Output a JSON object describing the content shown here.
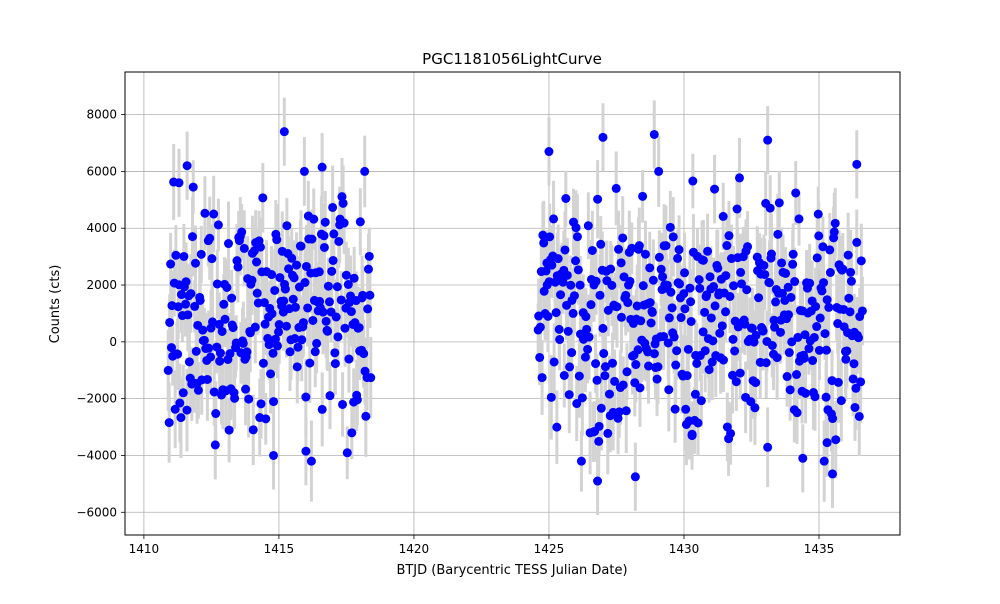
{
  "chart_data": {
    "type": "scatter",
    "title": "PGC1181056LightCurve",
    "xlabel": "BTJD (Barycentric TESS Julian Date)",
    "ylabel": "Counts (cts)",
    "xlim": [
      1409.3,
      1438.0
    ],
    "ylim": [
      -6800,
      9500
    ],
    "xticks": [
      1410,
      1415,
      1420,
      1425,
      1430,
      1435
    ],
    "yticks": [
      -6000,
      -4000,
      -2000,
      0,
      2000,
      4000,
      6000,
      8000
    ],
    "grid": true,
    "marker_color": "#0000ff",
    "errorbar_color": "#d3d3d3",
    "series": [
      {
        "segments": [
          {
            "x_start": 1410.9,
            "x_end": 1418.4,
            "count": 260,
            "y_center": 1000,
            "y_spread": 2300,
            "err": 1200
          },
          {
            "x_start": 1424.6,
            "x_end": 1436.6,
            "count": 420,
            "y_center": 1000,
            "y_spread": 2300,
            "err": 1200
          }
        ],
        "x": [
          1415.2,
          1427.0,
          1428.9,
          1433.1,
          1411.6,
          1416.6,
          1425.0,
          1436.4,
          1426.8,
          1428.2,
          1435.5,
          1414.8,
          1416.0,
          1430.3,
          1434.4,
          1435.3,
          1411.3
        ],
        "y": [
          7400,
          7200,
          7300,
          7100,
          6200,
          6150,
          6700,
          6250,
          -4900,
          -4750,
          -4650,
          -4000,
          -3850,
          -3300,
          -4100,
          -3550,
          5600
        ]
      }
    ]
  }
}
